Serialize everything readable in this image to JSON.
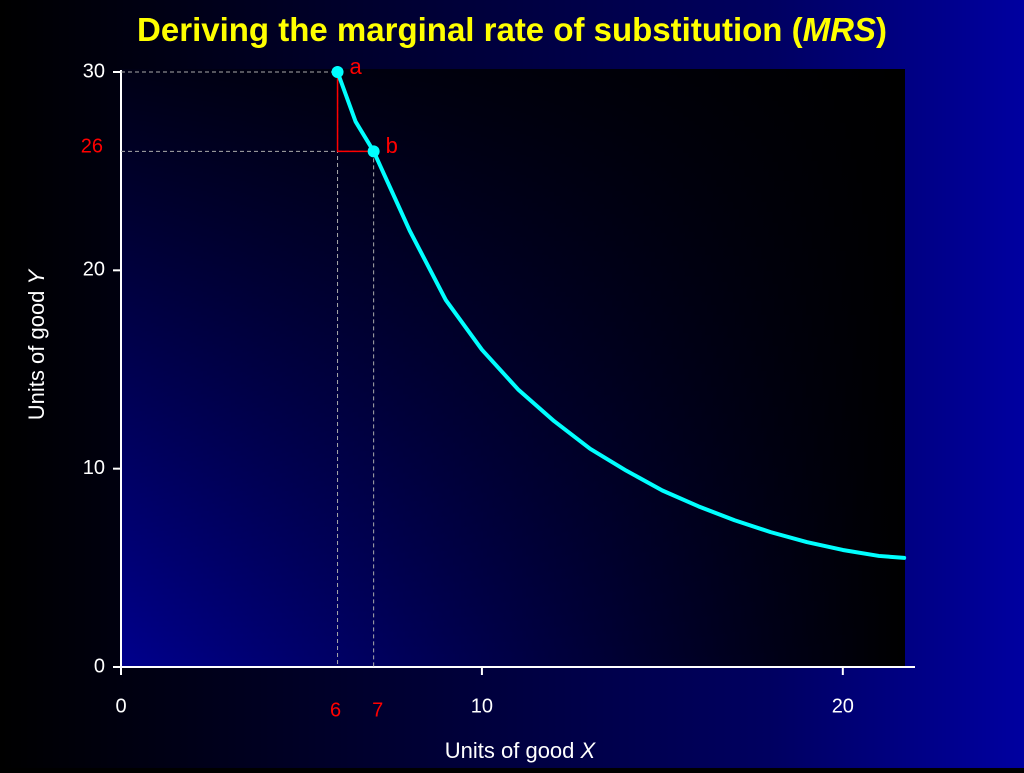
{
  "chart_data": {
    "type": "line",
    "title": {
      "text": "Deriving the marginal rate of substitution (",
      "emphasis": "MRS",
      "close": ")"
    },
    "x_label": {
      "text": "Units of good",
      "variable": "X"
    },
    "y_label": {
      "text": "Units of good",
      "variable": "Y"
    },
    "xlim": [
      0,
      22
    ],
    "ylim": [
      0,
      30
    ],
    "xticks": [
      0,
      10,
      20
    ],
    "yticks": [
      0,
      10,
      20,
      30
    ],
    "x": [
      6,
      6.5,
      7,
      7.5,
      8,
      9,
      10,
      11,
      12,
      13,
      14,
      15,
      16,
      17,
      18,
      19,
      20,
      21,
      21.7
    ],
    "values": [
      30,
      27.5,
      26,
      24,
      22,
      18.5,
      16,
      14,
      12.4,
      11,
      9.9,
      8.9,
      8.1,
      7.4,
      6.8,
      6.3,
      5.9,
      5.6,
      5.5
    ],
    "color": "#00ffff",
    "points": [
      {
        "label": "a",
        "x": 6,
        "y": 30
      },
      {
        "label": "b",
        "x": 7,
        "y": 26
      }
    ],
    "highlight_color": "#ff0000"
  }
}
